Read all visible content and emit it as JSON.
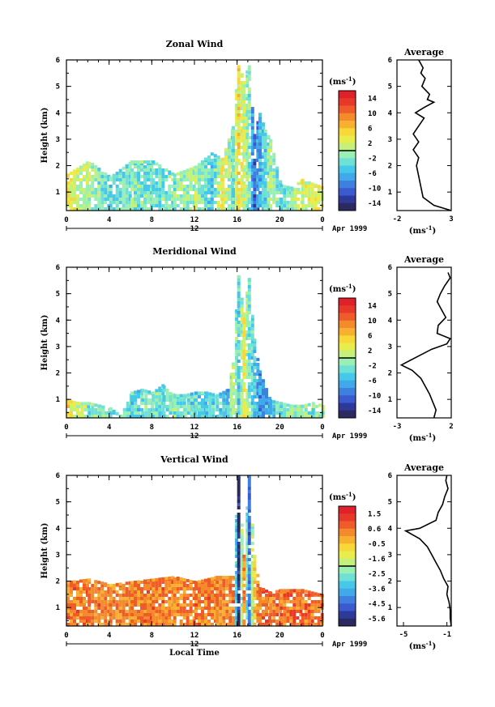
{
  "chart_data": [
    {
      "type": "heatmap",
      "title": "Zonal Wind",
      "ylabel": "Height (km)",
      "x_ticks": [
        "0",
        "4",
        "8",
        "12",
        "16",
        "20",
        "0"
      ],
      "y_ticks": [
        "1",
        "2",
        "3",
        "4",
        "5",
        "6"
      ],
      "xlim": [
        0,
        24
      ],
      "ylim": [
        0.3,
        6
      ],
      "day_label": "12",
      "date_label": "Apr 1999",
      "colorbar": {
        "unit": "(ms",
        "unit_exp": "-1",
        "unit_close": ")",
        "labels": [
          "14",
          "10",
          "6",
          "2",
          "-2",
          "-6",
          "-10",
          "-14"
        ],
        "min": -16,
        "max": 16,
        "colors": [
          "#2a2a60",
          "#2e3a9a",
          "#3c5ad0",
          "#3e7fe0",
          "#41a8ea",
          "#46c8e8",
          "#6fe0d6",
          "#9af0b4",
          "#c4f07c",
          "#e8ec4c",
          "#f8d838",
          "#f8b030",
          "#f48a2c",
          "#ef5b2a",
          "#e8382a",
          "#e0202a"
        ]
      },
      "series": [
        {
          "kind": "fill",
          "xs": [
            0,
            2,
            4,
            6,
            8,
            10,
            12,
            13.5,
            14.5,
            15.5,
            16,
            16.5,
            17,
            17.5,
            18,
            18.5,
            19,
            20,
            21,
            22,
            24
          ],
          "tops": [
            1.7,
            2.2,
            1.6,
            2.2,
            2.2,
            1.7,
            2.0,
            2.5,
            2.3,
            3.5,
            5.8,
            5.3,
            5.8,
            3.2,
            4.0,
            3.4,
            3.0,
            1.3,
            1.2,
            1.5,
            1.2
          ],
          "bottom": 0.3,
          "values": [
            3,
            0,
            -4,
            -2,
            -3,
            -2,
            0,
            -5,
            3,
            -3,
            4,
            1,
            -2,
            -10,
            -6,
            -4,
            0,
            -3,
            -1,
            2,
            3
          ]
        }
      ],
      "profile": {
        "title": "Average",
        "xlabel": "(ms",
        "xlabel_exp": "-1",
        "xlabel_close": ")",
        "x_ticks": [
          "-2",
          "3"
        ],
        "xlim": [
          -2,
          3
        ],
        "y_ticks": [
          "1",
          "2",
          "3",
          "4",
          "5",
          "6"
        ],
        "heights": [
          0.3,
          0.5,
          0.8,
          1.2,
          1.6,
          2.0,
          2.3,
          2.6,
          2.9,
          3.2,
          3.5,
          3.8,
          4.0,
          4.2,
          4.4,
          4.5,
          4.7,
          5.0,
          5.3,
          5.5,
          5.7,
          6.0
        ],
        "values": [
          3.0,
          1.4,
          0.4,
          0.2,
          0.0,
          -0.2,
          0.0,
          -0.5,
          0.0,
          -0.5,
          0.0,
          0.5,
          -0.3,
          0.5,
          1.4,
          0.8,
          1.0,
          0.3,
          0.6,
          0.2,
          0.4,
          0.0
        ]
      }
    },
    {
      "type": "heatmap",
      "title": "Meridional Wind",
      "ylabel": "Height (km)",
      "x_ticks": [
        "0",
        "4",
        "8",
        "12",
        "16",
        "20",
        "0"
      ],
      "y_ticks": [
        "1",
        "2",
        "3",
        "4",
        "5",
        "6"
      ],
      "xlim": [
        0,
        24
      ],
      "ylim": [
        0.3,
        6
      ],
      "day_label": "12",
      "date_label": "Apr 1999",
      "colorbar": {
        "unit": "(ms",
        "unit_exp": "-1",
        "unit_close": ")",
        "labels": [
          "14",
          "10",
          "6",
          "2",
          "-2",
          "-6",
          "-10",
          "-14"
        ],
        "min": -16,
        "max": 16,
        "colors": [
          "#2a2a60",
          "#2e3a9a",
          "#3c5ad0",
          "#3e7fe0",
          "#41a8ea",
          "#46c8e8",
          "#6fe0d6",
          "#9af0b4",
          "#c4f07c",
          "#e8ec4c",
          "#f8d838",
          "#f8b030",
          "#f48a2c",
          "#ef5b2a",
          "#e8382a",
          "#e0202a"
        ]
      },
      "series": [
        {
          "kind": "fill",
          "xs": [
            0,
            1,
            2,
            3,
            4,
            5,
            6,
            7,
            8,
            9,
            10,
            11,
            12,
            13,
            14,
            15,
            15.5,
            16,
            16.5,
            17,
            17.5,
            18,
            19,
            20,
            21,
            22,
            23,
            24
          ],
          "tops": [
            1.0,
            0.9,
            0.9,
            0.8,
            0.7,
            0.4,
            1.3,
            1.4,
            1.3,
            1.6,
            1.2,
            1.2,
            1.3,
            1.3,
            1.2,
            1.4,
            2.4,
            5.7,
            4.3,
            5.6,
            3.3,
            2.1,
            1.0,
            0.9,
            0.8,
            0.8,
            0.9,
            0.8
          ],
          "bottom": 0.3,
          "values": [
            4,
            2,
            -2,
            -1,
            -3,
            -2,
            -4,
            -3,
            -2,
            -3,
            -2,
            -3,
            -4,
            -5,
            -3,
            -6,
            2,
            -4,
            3,
            -2,
            -5,
            -8,
            -6,
            -2,
            -1,
            -1,
            -2,
            -1
          ]
        }
      ],
      "profile": {
        "title": "Average",
        "xlabel": "(ms",
        "xlabel_exp": "-1",
        "xlabel_close": ")",
        "x_ticks": [
          "-3",
          "2"
        ],
        "xlim": [
          -3,
          2
        ],
        "y_ticks": [
          "1",
          "2",
          "3",
          "4",
          "5",
          "6"
        ],
        "heights": [
          0.3,
          0.6,
          0.9,
          1.2,
          1.5,
          1.8,
          2.1,
          2.3,
          2.6,
          2.9,
          3.1,
          3.3,
          3.5,
          3.8,
          4.1,
          4.4,
          4.7,
          5.0,
          5.3,
          5.6,
          5.8
        ],
        "values": [
          0.4,
          0.6,
          0.3,
          0.0,
          -0.4,
          -0.8,
          -1.6,
          -2.6,
          -1.2,
          0.2,
          1.6,
          1.9,
          0.7,
          0.8,
          1.5,
          1.1,
          0.7,
          1.0,
          1.4,
          1.9,
          1.7
        ]
      }
    },
    {
      "type": "heatmap",
      "title": "Vertical Wind",
      "ylabel": "Height (km)",
      "xlabel": "Local Time",
      "x_ticks": [
        "0",
        "4",
        "8",
        "12",
        "16",
        "20",
        "0"
      ],
      "y_ticks": [
        "1",
        "2",
        "3",
        "4",
        "5",
        "6"
      ],
      "xlim": [
        0,
        24
      ],
      "ylim": [
        0.3,
        6
      ],
      "day_label": "12",
      "date_label": "Apr 1999",
      "colorbar": {
        "unit": "(ms",
        "unit_exp": "-1",
        "unit_close": ")",
        "labels": [
          "1.5",
          "0.6",
          "-0.5",
          "-1.6",
          "-2.5",
          "-3.6",
          "-4.5",
          "-5.6"
        ],
        "min": -6,
        "max": 2,
        "colors": [
          "#2a2a60",
          "#2e3a9a",
          "#3c5ad0",
          "#3e7fe0",
          "#41a8ea",
          "#46c8e8",
          "#6fe0d6",
          "#9af0b4",
          "#c4f07c",
          "#e8ec4c",
          "#f8d838",
          "#f8b030",
          "#f48a2c",
          "#ef5b2a",
          "#e8382a",
          "#e0202a"
        ]
      },
      "series": [
        {
          "kind": "fill",
          "xs": [
            0,
            2,
            4,
            6,
            8,
            10,
            12,
            14,
            15.5,
            16,
            16.5,
            17,
            17.5,
            18,
            19,
            20,
            22,
            24
          ],
          "tops": [
            2.0,
            2.1,
            1.9,
            2.0,
            2.1,
            2.2,
            2.0,
            2.2,
            2.2,
            6.0,
            3.0,
            6.0,
            3.0,
            1.8,
            1.6,
            1.7,
            1.7,
            1.5
          ],
          "bottom": 0.3,
          "values": [
            0.3,
            0.4,
            0.2,
            0.3,
            0.4,
            0.3,
            0.4,
            0.3,
            0.3,
            -5.5,
            0.2,
            -4.5,
            -0.5,
            0.5,
            0.6,
            0.5,
            0.6,
            0.4
          ]
        }
      ],
      "profile": {
        "title": "Average",
        "xlabel": "(ms",
        "xlabel_exp": "-1",
        "xlabel_close": ")",
        "x_ticks": [
          "-5",
          "-1"
        ],
        "xlim": [
          -5.6,
          -0.6
        ],
        "y_ticks": [
          "1",
          "2",
          "3",
          "4",
          "5",
          "6"
        ],
        "heights": [
          0.3,
          0.6,
          0.9,
          1.2,
          1.5,
          1.8,
          2.1,
          2.4,
          2.7,
          3.0,
          3.3,
          3.6,
          3.9,
          4.0,
          4.3,
          4.6,
          4.9,
          5.2,
          5.5,
          5.8,
          6.0
        ],
        "values": [
          -0.6,
          -0.7,
          -0.7,
          -0.8,
          -1.0,
          -0.9,
          -1.3,
          -1.6,
          -2.0,
          -2.4,
          -2.8,
          -3.5,
          -4.8,
          -3.5,
          -2.0,
          -1.8,
          -1.4,
          -1.2,
          -0.9,
          -1.1,
          -1.0
        ]
      }
    }
  ]
}
